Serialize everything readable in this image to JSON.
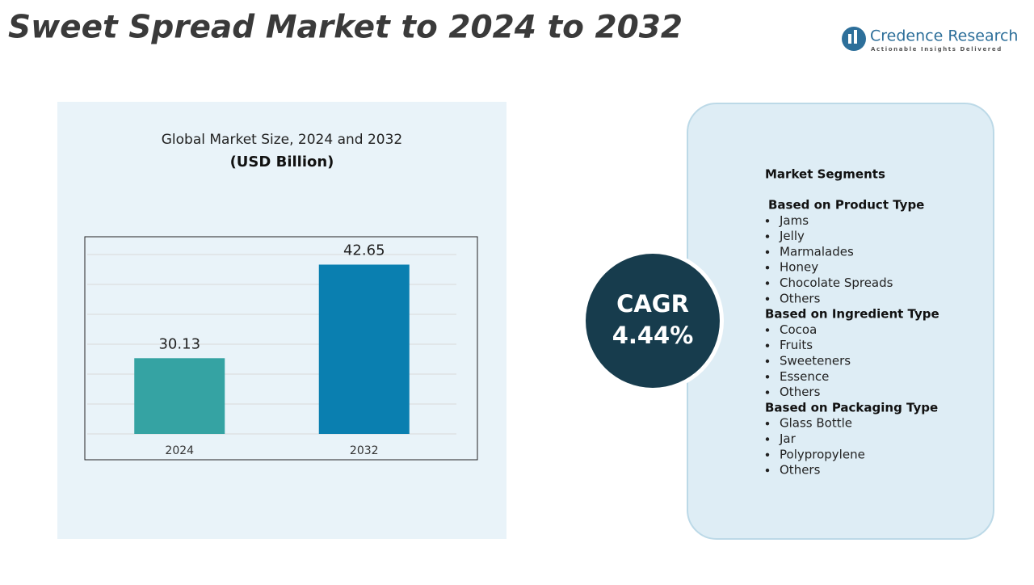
{
  "header": {
    "title": "Sweet Spread Market to 2024 to 2032",
    "logo": {
      "name": "Credence Research",
      "tagline": "Actionable Insights Delivered"
    }
  },
  "chart_data": {
    "type": "bar",
    "title": "Global Market Size, 2024 and 2032",
    "subtitle": "(USD Billion)",
    "categories": [
      "2024",
      "2032"
    ],
    "values": [
      30.13,
      42.65
    ],
    "colors": [
      "#35a3a3",
      "#0a7fb0"
    ],
    "ylim": [
      20,
      44
    ],
    "yticks": [
      20,
      24,
      28,
      32,
      36,
      40,
      44
    ],
    "grid": true
  },
  "cagr": {
    "label": "CAGR",
    "value": "4.44%"
  },
  "segments": {
    "title": "Market Segments",
    "groups": [
      {
        "title": "Based on Product Type",
        "items": [
          "Jams",
          "Jelly",
          "Marmalades",
          "Honey",
          "Chocolate Spreads",
          "Others"
        ]
      },
      {
        "title": "Based on Ingredient Type",
        "items": [
          "Cocoa",
          "Fruits",
          "Sweeteners",
          "Essence",
          "Others"
        ]
      },
      {
        "title": "Based on Packaging Type",
        "items": [
          "Glass Bottle",
          "Jar",
          "Polypropylene",
          "Others"
        ]
      }
    ]
  }
}
